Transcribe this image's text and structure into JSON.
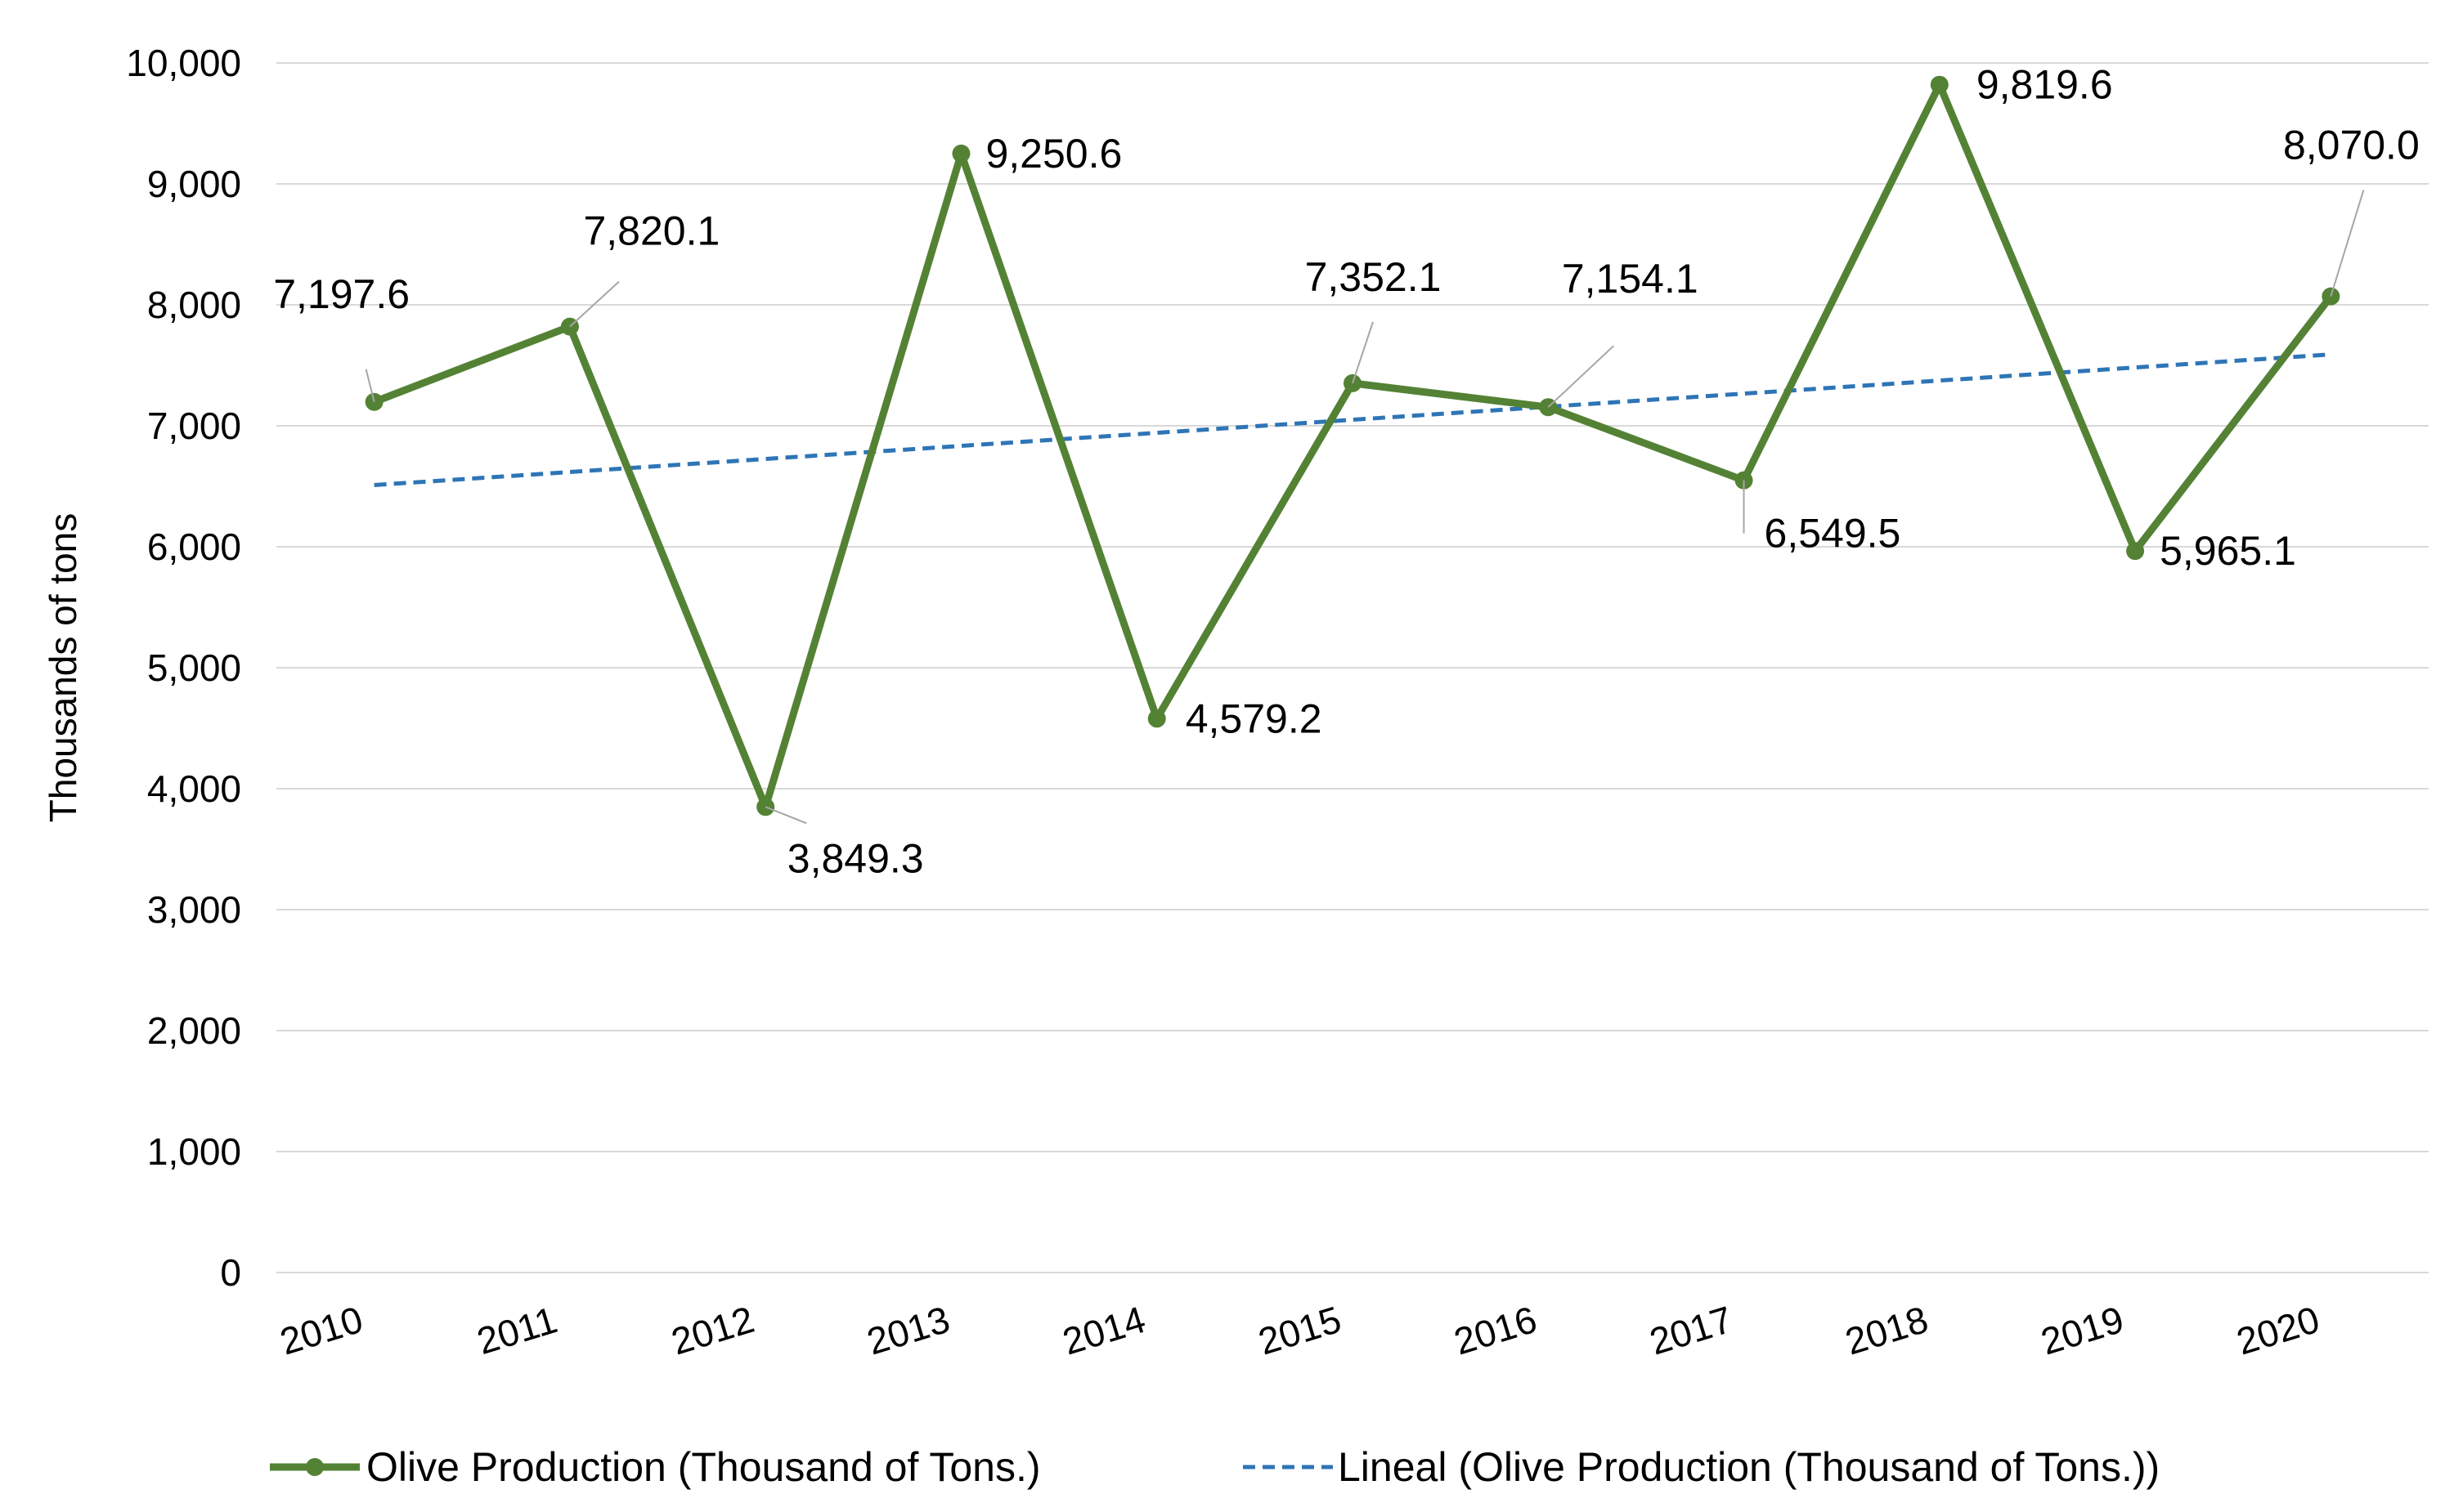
{
  "chart_data": {
    "type": "line",
    "title": "",
    "xlabel": "",
    "ylabel": "Thousands of tons",
    "ylim": [
      0,
      10000
    ],
    "ytick_step": 1000,
    "ytick_labels": [
      "0",
      "1,000",
      "2,000",
      "3,000",
      "4,000",
      "5,000",
      "6,000",
      "7,000",
      "8,000",
      "9,000",
      "10,000"
    ],
    "grid": true,
    "legend_position": "bottom",
    "categories": [
      "2010",
      "2011",
      "2012",
      "2013",
      "2014",
      "2015",
      "2016",
      "2017",
      "2018",
      "2019",
      "2020"
    ],
    "series": [
      {
        "name": "Olive Production (Thousand of Tons.)",
        "values": [
          7197.6,
          7820.1,
          3849.3,
          9250.6,
          4579.2,
          7352.1,
          7154.1,
          6549.5,
          9819.6,
          5965.1,
          8070.0
        ],
        "labels": [
          "7,197.6",
          "7,820.1",
          "3,849.3",
          "9,250.6",
          "4,579.2",
          "7,352.1",
          "7,154.1",
          "6,549.5",
          "9,819.6",
          "5,965.1",
          "8,070.0"
        ],
        "color": "#548235",
        "style": "solid",
        "marker": "circle"
      },
      {
        "name": "Lineal (Olive Production (Thousand of Tons.))",
        "type": "trendline",
        "start": 6510,
        "end": 7590,
        "color": "#2E75B6",
        "style": "dashed"
      }
    ]
  }
}
